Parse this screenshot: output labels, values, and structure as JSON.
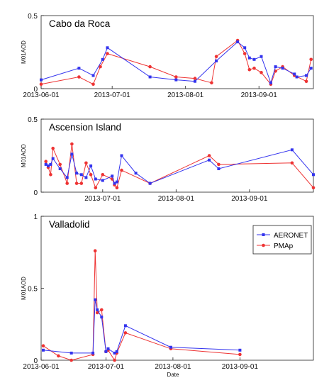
{
  "chart_data": [
    {
      "type": "line",
      "title": "Cabo da Roca",
      "xlabel": "",
      "ylabel": "M01AOD",
      "xlim": [
        "2013-06-01",
        "2013-09-24"
      ],
      "ylim": [
        0,
        0.5
      ],
      "yticks": [
        "0",
        "0.5"
      ],
      "xticks": [
        {
          "date": "2013-06-01",
          "label": "2013-06-01"
        },
        {
          "date": "2013-07-01",
          "label": "2013-07-01"
        },
        {
          "date": "2013-08-01",
          "label": "2013-08-01"
        },
        {
          "date": "2013-09-01",
          "label": "2013-09-01"
        }
      ],
      "series": [
        {
          "name": "AERONET",
          "color": "#3333ee",
          "x": [
            "2013-06-01",
            "2013-06-17",
            "2013-06-23",
            "2013-06-27",
            "2013-06-29",
            "2013-07-17",
            "2013-07-28",
            "2013-08-05",
            "2013-08-14",
            "2013-08-23",
            "2013-08-26",
            "2013-08-28",
            "2013-08-30",
            "2013-09-02",
            "2013-09-06",
            "2013-09-08",
            "2013-09-11",
            "2013-09-16",
            "2013-09-17",
            "2013-09-21",
            "2013-09-23"
          ],
          "y": [
            0.06,
            0.14,
            0.09,
            0.2,
            0.28,
            0.08,
            0.06,
            0.05,
            0.19,
            0.32,
            0.28,
            0.21,
            0.2,
            0.22,
            0.04,
            0.15,
            0.14,
            0.1,
            0.08,
            0.09,
            0.14
          ]
        },
        {
          "name": "PMAp",
          "color": "#ee3333",
          "x": [
            "2013-06-01",
            "2013-06-17",
            "2013-06-23",
            "2013-06-26",
            "2013-06-29",
            "2013-07-17",
            "2013-07-28",
            "2013-08-05",
            "2013-08-12",
            "2013-08-14",
            "2013-08-23",
            "2013-08-26",
            "2013-08-28",
            "2013-08-30",
            "2013-09-02",
            "2013-09-06",
            "2013-09-08",
            "2013-09-11",
            "2013-09-16",
            "2013-09-21",
            "2013-09-23"
          ],
          "y": [
            0.03,
            0.08,
            0.03,
            0.15,
            0.24,
            0.15,
            0.08,
            0.07,
            0.04,
            0.22,
            0.33,
            0.24,
            0.13,
            0.14,
            0.11,
            0.03,
            0.12,
            0.15,
            0.09,
            0.05,
            0.2
          ]
        }
      ]
    },
    {
      "type": "line",
      "title": "Ascension Island",
      "xlabel": "",
      "ylabel": "M01AOD",
      "xlim": [
        "2013-06-05",
        "2013-09-28"
      ],
      "ylim": [
        0,
        0.5
      ],
      "yticks": [
        "0",
        "0.5"
      ],
      "xticks": [
        {
          "date": "2013-07-01",
          "label": "2013-07-01"
        },
        {
          "date": "2013-08-01",
          "label": "2013-08-01"
        },
        {
          "date": "2013-09-01",
          "label": "2013-09-01"
        }
      ],
      "series": [
        {
          "name": "AERONET",
          "color": "#3333ee",
          "x": [
            "2013-06-07",
            "2013-06-08",
            "2013-06-09",
            "2013-06-10",
            "2013-06-13",
            "2013-06-16",
            "2013-06-18",
            "2013-06-20",
            "2013-06-22",
            "2013-06-24",
            "2013-06-26",
            "2013-06-28",
            "2013-07-01",
            "2013-07-05",
            "2013-07-06",
            "2013-07-07",
            "2013-07-09",
            "2013-07-15",
            "2013-07-21",
            "2013-08-15",
            "2013-08-19",
            "2013-09-19",
            "2013-09-28"
          ],
          "y": [
            0.19,
            0.18,
            0.19,
            0.23,
            0.16,
            0.1,
            0.26,
            0.13,
            0.12,
            0.1,
            0.18,
            0.09,
            0.08,
            0.11,
            0.06,
            0.07,
            0.25,
            0.13,
            0.06,
            0.22,
            0.16,
            0.29,
            0.12
          ]
        },
        {
          "name": "PMAp",
          "color": "#ee3333",
          "x": [
            "2013-06-07",
            "2013-06-08",
            "2013-06-09",
            "2013-06-10",
            "2013-06-13",
            "2013-06-16",
            "2013-06-18",
            "2013-06-20",
            "2013-06-22",
            "2013-06-24",
            "2013-06-26",
            "2013-06-28",
            "2013-07-01",
            "2013-07-05",
            "2013-07-06",
            "2013-07-07",
            "2013-07-09",
            "2013-07-21",
            "2013-08-15",
            "2013-08-19",
            "2013-09-19",
            "2013-09-28"
          ],
          "y": [
            0.21,
            0.17,
            0.12,
            0.3,
            0.19,
            0.06,
            0.33,
            0.06,
            0.06,
            0.2,
            0.12,
            0.03,
            0.12,
            0.09,
            0.05,
            0.03,
            0.15,
            0.06,
            0.25,
            0.19,
            0.2,
            0.03
          ]
        }
      ]
    },
    {
      "type": "line",
      "title": "Valladolid",
      "xlabel": "Date",
      "ylabel": "M01AOD",
      "xlim": [
        "2013-06-01",
        "2013-10-05"
      ],
      "ylim": [
        0,
        1
      ],
      "yticks": [
        "0",
        "0.5",
        "1"
      ],
      "xticks": [
        {
          "date": "2013-06-01",
          "label": "2013-06-01"
        },
        {
          "date": "2013-07-01",
          "label": "2013-07-01"
        },
        {
          "date": "2013-08-01",
          "label": "2013-08-01"
        },
        {
          "date": "2013-09-01",
          "label": "2013-09-01"
        }
      ],
      "legend": {
        "position": "top-right",
        "entries": [
          "AERONET",
          "PMAp"
        ]
      },
      "series": [
        {
          "name": "AERONET",
          "color": "#3333ee",
          "x": [
            "2013-06-02",
            "2013-06-15",
            "2013-06-25",
            "2013-06-26",
            "2013-06-27",
            "2013-06-29",
            "2013-07-01",
            "2013-07-02",
            "2013-07-05",
            "2013-07-06",
            "2013-07-10",
            "2013-07-31",
            "2013-09-01"
          ],
          "y": [
            0.07,
            0.05,
            0.05,
            0.42,
            0.35,
            0.3,
            0.06,
            0.08,
            0.05,
            0.06,
            0.24,
            0.09,
            0.07
          ]
        },
        {
          "name": "PMAp",
          "color": "#ee3333",
          "x": [
            "2013-06-02",
            "2013-06-09",
            "2013-06-15",
            "2013-06-25",
            "2013-06-26",
            "2013-06-27",
            "2013-06-29",
            "2013-07-01",
            "2013-07-02",
            "2013-07-05",
            "2013-07-06",
            "2013-07-10",
            "2013-07-31",
            "2013-09-01"
          ],
          "y": [
            0.1,
            0.03,
            0.0,
            0.04,
            0.76,
            0.33,
            0.35,
            0.06,
            0.07,
            0.0,
            0.05,
            0.19,
            0.08,
            0.04
          ]
        }
      ]
    }
  ]
}
